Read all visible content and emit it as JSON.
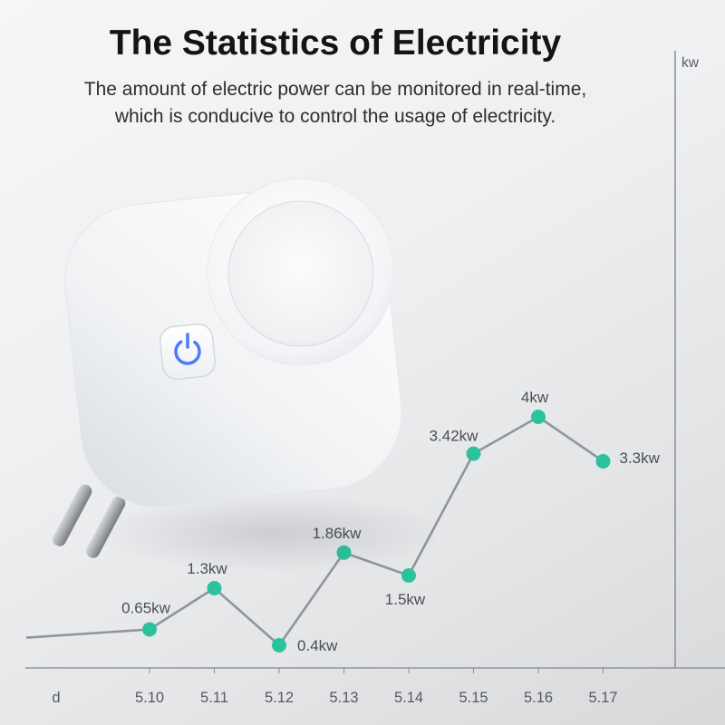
{
  "header": {
    "title": "The Statistics of Electricity",
    "subtitle_line1": "The amount of electric power can be monitored in real-time,",
    "subtitle_line2": "which is conducive to control the usage of electricity."
  },
  "plug": {
    "power_icon_color": "#4b7df8"
  },
  "chart_data": {
    "type": "line",
    "categories": [
      "5.10",
      "5.11",
      "5.12",
      "5.13",
      "5.14",
      "5.15",
      "5.16",
      "5.17"
    ],
    "values": [
      0.65,
      1.3,
      0.4,
      1.86,
      1.5,
      3.42,
      4,
      3.3
    ],
    "point_labels": [
      "0.65kw",
      "1.3kw",
      "0.4kw",
      "1.86kw",
      "1.5kw",
      "3.42kw",
      "4kw",
      "3.3kw"
    ],
    "xlabel": "d",
    "ylabel": "kw",
    "ylim": [
      0,
      4.5
    ],
    "grid": false,
    "legend": "none",
    "line_color": "#8f959c",
    "point_color": "#2cc29e",
    "label_color": "#494e54",
    "axis_color": "#8f949a",
    "tick_label_color": "#55595e"
  }
}
